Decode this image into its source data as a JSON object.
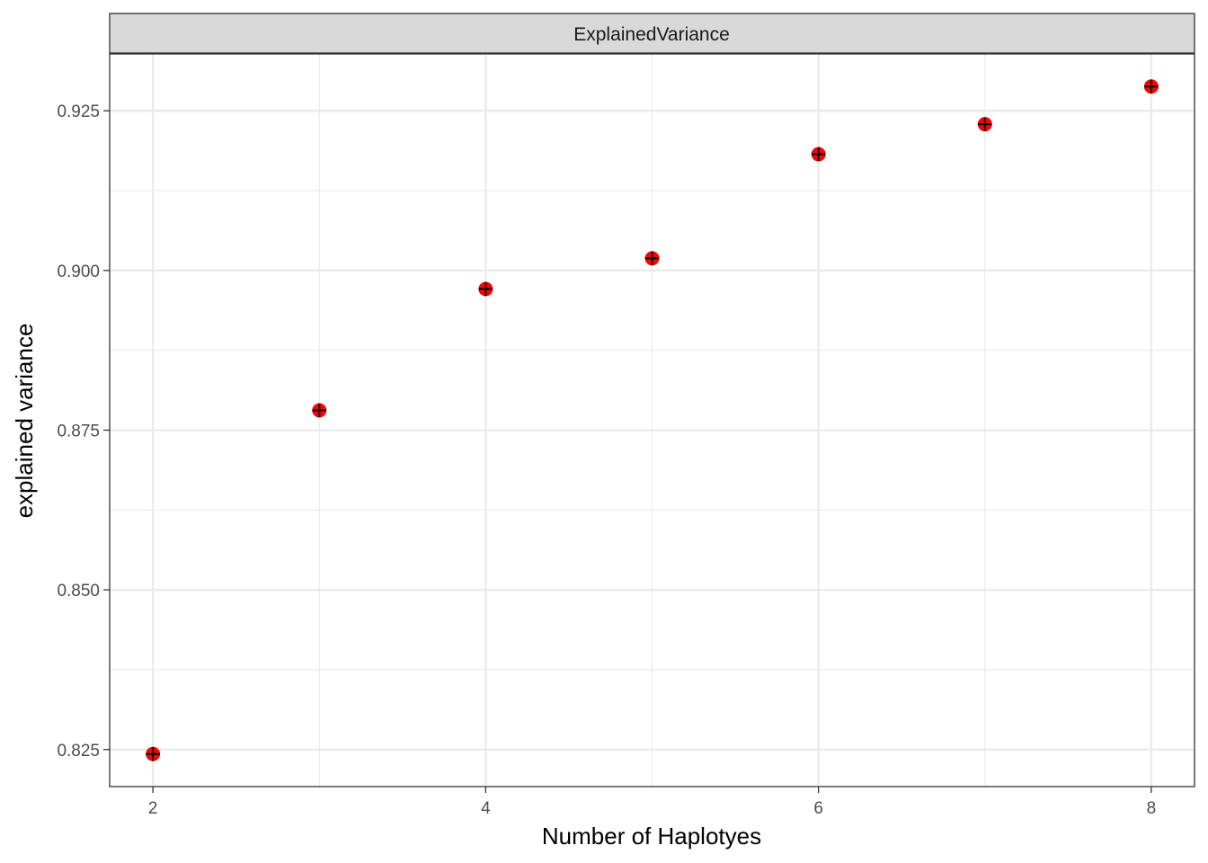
{
  "chart_data": {
    "type": "scatter",
    "facet_label": "ExplainedVariance",
    "xlabel": "Number of Haplotyes",
    "ylabel": "explained variance",
    "x": [
      2,
      3,
      4,
      5,
      6,
      7,
      8
    ],
    "y": [
      0.8243,
      0.8781,
      0.8971,
      0.9019,
      0.9182,
      0.9229,
      0.9288
    ],
    "xlim": [
      1.74,
      8.26
    ],
    "ylim": [
      0.8192,
      0.9339
    ],
    "x_ticks": [
      2,
      4,
      6,
      8
    ],
    "x_tick_labels": [
      "2",
      "4",
      "6",
      "8"
    ],
    "y_ticks": [
      0.825,
      0.85,
      0.875,
      0.9,
      0.925
    ],
    "y_tick_labels": [
      "0.825",
      "0.850",
      "0.875",
      "0.900",
      "0.925"
    ],
    "x_minor_ticks": [
      3,
      5,
      7
    ],
    "y_minor_ticks": [
      0.8375,
      0.8625,
      0.8875,
      0.9125
    ],
    "grid": true,
    "point_color": "#ff0000",
    "point_outline_color": "#000000",
    "strip_fill": "#d9d9d9",
    "grid_color": "#ebebeb"
  }
}
